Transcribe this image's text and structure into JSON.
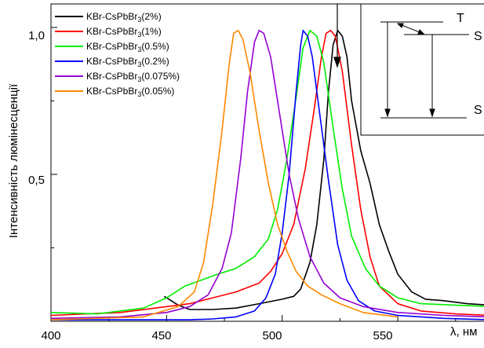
{
  "chart_data": {
    "type": "line",
    "title": "",
    "xlabel": "λ, нм",
    "ylabel": "Інтенсивність люмінесценції",
    "xlim": [
      400,
      590
    ],
    "ylim": [
      0,
      1.08
    ],
    "x_ticks": [
      "400",
      "450",
      "500",
      "550"
    ],
    "y_ticks": [
      "0,5",
      "1,0"
    ],
    "legend_position": "top-left",
    "grid": false,
    "series": [
      {
        "label": "KBr-CsPbBr",
        "sub": "3",
        "suffix": "(2%)",
        "color": "#000000",
        "points": [
          [
            449,
            0.085
          ],
          [
            452,
            0.07
          ],
          [
            455,
            0.055
          ],
          [
            460,
            0.04
          ],
          [
            470,
            0.04
          ],
          [
            480,
            0.045
          ],
          [
            490,
            0.06
          ],
          [
            500,
            0.075
          ],
          [
            505,
            0.085
          ],
          [
            508,
            0.11
          ],
          [
            512,
            0.2
          ],
          [
            515,
            0.33
          ],
          [
            518,
            0.55
          ],
          [
            520,
            0.78
          ],
          [
            522,
            0.94
          ],
          [
            524,
            0.99
          ],
          [
            526,
            0.97
          ],
          [
            528,
            0.9
          ],
          [
            530,
            0.75
          ],
          [
            534,
            0.58
          ],
          [
            538,
            0.47
          ],
          [
            542,
            0.33
          ],
          [
            546,
            0.24
          ],
          [
            550,
            0.16
          ],
          [
            556,
            0.1
          ],
          [
            562,
            0.075
          ],
          [
            570,
            0.07
          ],
          [
            580,
            0.06
          ],
          [
            590,
            0.055
          ]
        ]
      },
      {
        "label": "KBr-CsPbBr",
        "sub": "3",
        "suffix": "(1%)",
        "color": "#ff0000",
        "points": [
          [
            400,
            0.02
          ],
          [
            430,
            0.03
          ],
          [
            450,
            0.05
          ],
          [
            460,
            0.06
          ],
          [
            470,
            0.08
          ],
          [
            480,
            0.1
          ],
          [
            490,
            0.13
          ],
          [
            495,
            0.17
          ],
          [
            500,
            0.23
          ],
          [
            505,
            0.33
          ],
          [
            510,
            0.52
          ],
          [
            514,
            0.73
          ],
          [
            517,
            0.9
          ],
          [
            519,
            0.98
          ],
          [
            521,
            0.99
          ],
          [
            523,
            0.97
          ],
          [
            526,
            0.85
          ],
          [
            530,
            0.6
          ],
          [
            534,
            0.38
          ],
          [
            538,
            0.22
          ],
          [
            542,
            0.12
          ],
          [
            550,
            0.06
          ],
          [
            560,
            0.035
          ],
          [
            575,
            0.025
          ],
          [
            590,
            0.02
          ]
        ]
      },
      {
        "label": "KBr-CsPbBr",
        "sub": "3",
        "suffix": "(0.5%)",
        "color": "#00ee00",
        "points": [
          [
            400,
            0.03
          ],
          [
            420,
            0.025
          ],
          [
            440,
            0.045
          ],
          [
            450,
            0.08
          ],
          [
            458,
            0.12
          ],
          [
            465,
            0.14
          ],
          [
            472,
            0.16
          ],
          [
            480,
            0.18
          ],
          [
            488,
            0.22
          ],
          [
            494,
            0.28
          ],
          [
            498,
            0.38
          ],
          [
            502,
            0.55
          ],
          [
            506,
            0.76
          ],
          [
            509,
            0.93
          ],
          [
            512,
            0.99
          ],
          [
            515,
            0.97
          ],
          [
            518,
            0.88
          ],
          [
            522,
            0.66
          ],
          [
            526,
            0.45
          ],
          [
            530,
            0.29
          ],
          [
            536,
            0.18
          ],
          [
            542,
            0.12
          ],
          [
            550,
            0.08
          ],
          [
            560,
            0.06
          ],
          [
            575,
            0.055
          ],
          [
            590,
            0.05
          ]
        ]
      },
      {
        "label": "KBr-CsPbBr",
        "sub": "3",
        "suffix": "(0.2%)",
        "color": "#0000ff",
        "points": [
          [
            400,
            0.005
          ],
          [
            460,
            0.005
          ],
          [
            470,
            0.008
          ],
          [
            480,
            0.015
          ],
          [
            488,
            0.035
          ],
          [
            493,
            0.08
          ],
          [
            497,
            0.16
          ],
          [
            500,
            0.3
          ],
          [
            503,
            0.5
          ],
          [
            506,
            0.78
          ],
          [
            508,
            0.94
          ],
          [
            509,
            0.99
          ],
          [
            511,
            0.97
          ],
          [
            513,
            0.9
          ],
          [
            516,
            0.72
          ],
          [
            520,
            0.48
          ],
          [
            524,
            0.26
          ],
          [
            528,
            0.14
          ],
          [
            533,
            0.07
          ],
          [
            540,
            0.035
          ],
          [
            550,
            0.02
          ],
          [
            570,
            0.01
          ],
          [
            590,
            0.005
          ]
        ]
      },
      {
        "label": "KBr-CsPbBr",
        "sub": "3",
        "suffix": "(0.075%)",
        "color": "#9400d3",
        "points": [
          [
            400,
            0.01
          ],
          [
            430,
            0.015
          ],
          [
            450,
            0.03
          ],
          [
            460,
            0.05
          ],
          [
            468,
            0.09
          ],
          [
            474,
            0.18
          ],
          [
            478,
            0.3
          ],
          [
            482,
            0.55
          ],
          [
            485,
            0.78
          ],
          [
            488,
            0.95
          ],
          [
            490,
            0.99
          ],
          [
            492,
            0.98
          ],
          [
            495,
            0.9
          ],
          [
            499,
            0.7
          ],
          [
            503,
            0.5
          ],
          [
            507,
            0.35
          ],
          [
            512,
            0.22
          ],
          [
            518,
            0.13
          ],
          [
            525,
            0.08
          ],
          [
            535,
            0.05
          ],
          [
            550,
            0.03
          ],
          [
            570,
            0.02
          ],
          [
            590,
            0.015
          ]
        ]
      },
      {
        "label": "KBr-CsPbBr",
        "sub": "3",
        "suffix": "(0.05%)",
        "color": "#ff8800",
        "points": [
          [
            400,
            0.005
          ],
          [
            440,
            0.015
          ],
          [
            455,
            0.05
          ],
          [
            462,
            0.1
          ],
          [
            466,
            0.2
          ],
          [
            470,
            0.4
          ],
          [
            474,
            0.65
          ],
          [
            477,
            0.87
          ],
          [
            479,
            0.98
          ],
          [
            481,
            0.99
          ],
          [
            483,
            0.96
          ],
          [
            486,
            0.85
          ],
          [
            490,
            0.65
          ],
          [
            494,
            0.47
          ],
          [
            498,
            0.33
          ],
          [
            502,
            0.24
          ],
          [
            506,
            0.17
          ],
          [
            511,
            0.12
          ],
          [
            517,
            0.09
          ],
          [
            525,
            0.06
          ],
          [
            535,
            0.03
          ],
          [
            550,
            0.015
          ]
        ]
      }
    ],
    "inset": {
      "level_top": "T",
      "level_mid": "S",
      "level_bottom": "S"
    }
  }
}
